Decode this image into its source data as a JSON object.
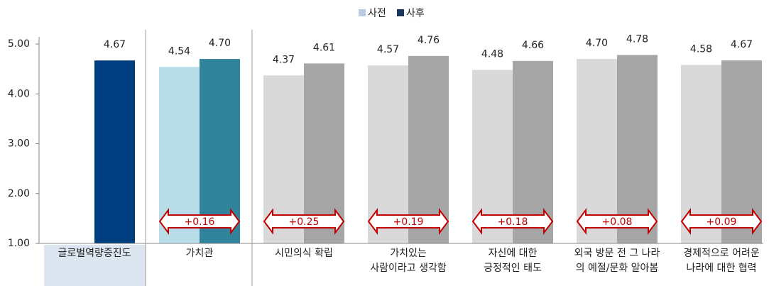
{
  "chart_data": {
    "type": "bar",
    "categories": [
      "글로벌역량증진도",
      "가치관",
      "시민의식 확립",
      "가치있는\n사람이라고 생각함",
      "자신에 대한\n긍정적인 태도",
      "외국 방문 전 그 나라\n의 예절/문화 알아봄",
      "경제적으로 어려운\n나라에 대한 협력"
    ],
    "series": [
      {
        "name": "사전",
        "color": "#b8cce4",
        "bar_colors": [
          null,
          "#b7dde8",
          "#d9d9d9",
          "#d9d9d9",
          "#d9d9d9",
          "#d9d9d9",
          "#d9d9d9"
        ],
        "values": [
          null,
          4.54,
          4.37,
          4.57,
          4.48,
          4.7,
          4.58
        ],
        "value_labels": [
          null,
          "4.54",
          "4.37",
          "4.57",
          "4.48",
          "4.70",
          "4.58"
        ]
      },
      {
        "name": "사후",
        "color": "#17375e",
        "bar_colors": [
          "#003f7f",
          "#31849b",
          "#a6a6a6",
          "#a6a6a6",
          "#a6a6a6",
          "#a6a6a6",
          "#a6a6a6"
        ],
        "values": [
          4.67,
          4.7,
          4.61,
          4.76,
          4.66,
          4.78,
          4.67
        ],
        "value_labels": [
          "4.67",
          "4.70",
          "4.61",
          "4.76",
          "4.66",
          "4.78",
          "4.67"
        ]
      }
    ],
    "annotations": [
      null,
      "+0.16",
      "+0.25",
      "+0.19",
      "+0.18",
      "+0.08",
      "+0.09"
    ],
    "annotation_color": "#c00000",
    "ylim": [
      1,
      5
    ],
    "yticks": [
      {
        "value": 1,
        "label": "1.00"
      },
      {
        "value": 2,
        "label": "2.00"
      },
      {
        "value": 3,
        "label": "3.00"
      },
      {
        "value": 4,
        "label": "4.00"
      },
      {
        "value": 5,
        "label": "5.00"
      }
    ],
    "legend": "top"
  }
}
